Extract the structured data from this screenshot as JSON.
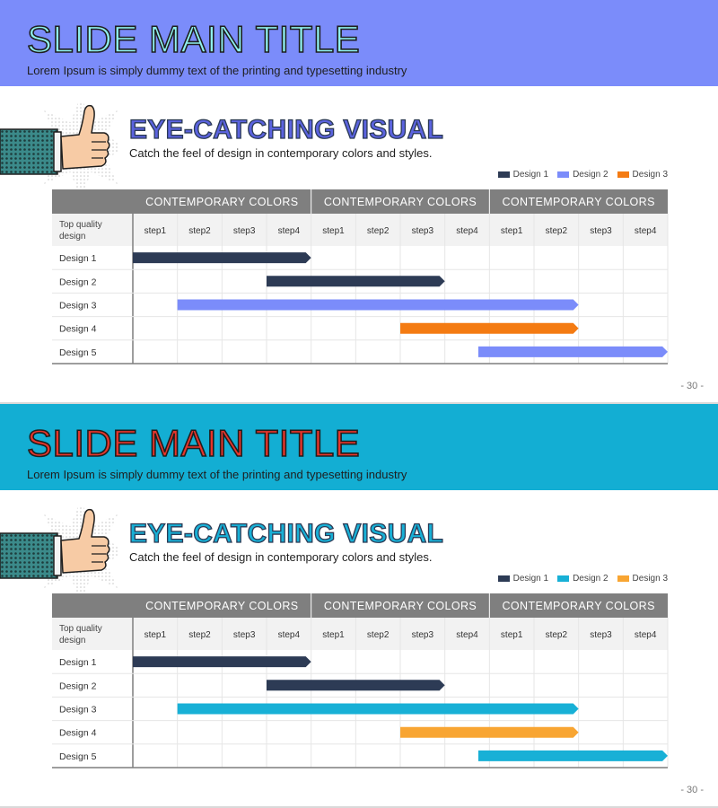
{
  "slides": [
    {
      "theme": {
        "banner": "#7b8cfa",
        "title_fill": "#8ff0ee",
        "heading_fill": "#5b63df"
      },
      "title": "SLIDE MAIN TITLE",
      "subtitle": "Lorem Ipsum  is simply dummy  text of the printing  and  typesetting industry",
      "heading": "EYE-CATCHING VISUAL",
      "tagline": "Catch the feel of design  in contemporary colors and styles.",
      "page_number": "- 30 -",
      "chart_data": {
        "type": "gantt",
        "corner_label": [
          "Top  quality",
          "design"
        ],
        "groups": [
          "CONTEMPORARY  COLORS",
          "CONTEMPORARY  COLORS",
          "CONTEMPORARY  COLORS"
        ],
        "steps": [
          "step1",
          "step2",
          "step3",
          "step4",
          "step1",
          "step2",
          "step3",
          "step4",
          "step1",
          "step2",
          "step3",
          "step4"
        ],
        "legend": [
          {
            "name": "Design 1",
            "color": "#2d3b55"
          },
          {
            "name": "Design 2",
            "color": "#7b8cfa"
          },
          {
            "name": "Design 3",
            "color": "#f47b12"
          }
        ],
        "rows": [
          {
            "label": "Design  1",
            "start": 0,
            "end": 4,
            "color": "#2d3b55"
          },
          {
            "label": "Design  2",
            "start": 3,
            "end": 7,
            "color": "#2d3b55"
          },
          {
            "label": "Design  3",
            "start": 1,
            "end": 10,
            "color": "#7b8cfa"
          },
          {
            "label": "Design  4",
            "start": 6,
            "end": 10,
            "color": "#f47b12"
          },
          {
            "label": "Design  5",
            "start": 7.75,
            "end": 12,
            "color": "#7b8cfa"
          }
        ]
      }
    },
    {
      "theme": {
        "banner": "#13aed3",
        "title_fill": "#e8352b",
        "heading_fill": "#18b0d6"
      },
      "title": "SLIDE MAIN TITLE",
      "subtitle": "Lorem Ipsum  is simply dummy  text of the printing  and  typesetting industry",
      "heading": "EYE-CATCHING VISUAL",
      "tagline": "Catch the feel of design  in contemporary colors and styles.",
      "page_number": "- 30 -",
      "chart_data": {
        "type": "gantt",
        "corner_label": [
          "Top  quality",
          "design"
        ],
        "groups": [
          "CONTEMPORARY  COLORS",
          "CONTEMPORARY  COLORS",
          "CONTEMPORARY  COLORS"
        ],
        "steps": [
          "step1",
          "step2",
          "step3",
          "step4",
          "step1",
          "step2",
          "step3",
          "step4",
          "step1",
          "step2",
          "step3",
          "step4"
        ],
        "legend": [
          {
            "name": "Design 1",
            "color": "#2d3b55"
          },
          {
            "name": "Design 2",
            "color": "#18b0d6"
          },
          {
            "name": "Design 3",
            "color": "#f8a532"
          }
        ],
        "rows": [
          {
            "label": "Design  1",
            "start": 0,
            "end": 4,
            "color": "#2d3b55"
          },
          {
            "label": "Design  2",
            "start": 3,
            "end": 7,
            "color": "#2d3b55"
          },
          {
            "label": "Design  3",
            "start": 1,
            "end": 10,
            "color": "#18b0d6"
          },
          {
            "label": "Design  4",
            "start": 6,
            "end": 10,
            "color": "#f8a532"
          },
          {
            "label": "Design  5",
            "start": 7.75,
            "end": 12,
            "color": "#18b0d6"
          }
        ]
      }
    }
  ]
}
